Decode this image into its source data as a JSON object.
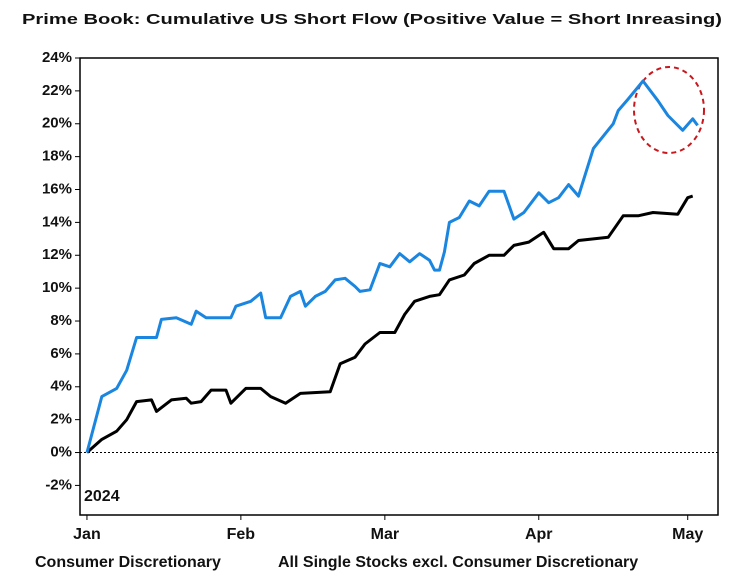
{
  "chart_data": {
    "type": "line",
    "title": "Prime Book: Cumulative US Short Flow (Positive Value = Short Inreasing)",
    "annotation": "2024",
    "xlim": [
      -1.4,
      127.1
    ],
    "xticks": [
      {
        "value": 0,
        "label": "Jan"
      },
      {
        "value": 31,
        "label": "Feb"
      },
      {
        "value": 60,
        "label": "Mar"
      },
      {
        "value": 91,
        "label": "Apr"
      },
      {
        "value": 121,
        "label": "May"
      }
    ],
    "ylim": [
      -3.8,
      24
    ],
    "yticks": [
      {
        "value": -2,
        "label": "-2%"
      },
      {
        "value": 0,
        "label": "0%"
      },
      {
        "value": 2,
        "label": "2%"
      },
      {
        "value": 4,
        "label": "4%"
      },
      {
        "value": 6,
        "label": "6%"
      },
      {
        "value": 8,
        "label": "8%"
      },
      {
        "value": 10,
        "label": "10%"
      },
      {
        "value": 12,
        "label": "12%"
      },
      {
        "value": 14,
        "label": "14%"
      },
      {
        "value": 16,
        "label": "16%"
      },
      {
        "value": 18,
        "label": "18%"
      },
      {
        "value": 20,
        "label": "20%"
      },
      {
        "value": 22,
        "label": "22%"
      },
      {
        "value": 24,
        "label": "24%"
      }
    ],
    "series": [
      {
        "name": "Consumer Discretionary",
        "color": "#1a86e0",
        "x": [
          0,
          3,
          6,
          8,
          10,
          14,
          15,
          18,
          21,
          22,
          24,
          29,
          30,
          33,
          35,
          36,
          39,
          41,
          43,
          44,
          46,
          48,
          50,
          52,
          54,
          55,
          57,
          59,
          61,
          63,
          65,
          67,
          69,
          70,
          71,
          72,
          73,
          75,
          77,
          79,
          81,
          84,
          86,
          88,
          91,
          93,
          95,
          97,
          99,
          102,
          106,
          107,
          109,
          112,
          115,
          117,
          120,
          122,
          123
        ],
        "values": [
          0,
          3.4,
          3.9,
          5,
          7,
          7,
          8.1,
          8.2,
          7.8,
          8.6,
          8.2,
          8.2,
          8.9,
          9.2,
          9.7,
          8.2,
          8.2,
          9.5,
          9.8,
          8.9,
          9.5,
          9.8,
          10.5,
          10.6,
          10.1,
          9.8,
          9.9,
          11.5,
          11.3,
          12.1,
          11.6,
          12.1,
          11.7,
          11.1,
          11.1,
          12.2,
          14,
          14.3,
          15.3,
          15,
          15.9,
          15.9,
          14.2,
          14.6,
          15.8,
          15.2,
          15.5,
          16.3,
          15.6,
          18.5,
          20,
          20.8,
          21.5,
          22.6,
          21.4,
          20.5,
          19.6,
          20.3,
          19.9
        ]
      },
      {
        "name": "All Single Stocks excl. Consumer Discretionary",
        "color": "#000000",
        "x": [
          0,
          3,
          6,
          8,
          10,
          13,
          14,
          17,
          20,
          21,
          23,
          25,
          28,
          29,
          32,
          35,
          37,
          40,
          43,
          49,
          51,
          54,
          56,
          59,
          62,
          64,
          66,
          69,
          71,
          73,
          76,
          78,
          81,
          84,
          86,
          89,
          92,
          94,
          97,
          99,
          105,
          108,
          111,
          114,
          119,
          121,
          122
        ],
        "values": [
          0,
          0.8,
          1.3,
          2,
          3.1,
          3.2,
          2.5,
          3.2,
          3.3,
          3,
          3.1,
          3.8,
          3.8,
          3,
          3.9,
          3.9,
          3.4,
          3,
          3.6,
          3.7,
          5.4,
          5.8,
          6.6,
          7.3,
          7.3,
          8.4,
          9.2,
          9.5,
          9.6,
          10.5,
          10.8,
          11.5,
          12,
          12,
          12.6,
          12.8,
          13.4,
          12.4,
          12.4,
          12.9,
          13.1,
          14.4,
          14.4,
          14.6,
          14.5,
          15.5,
          15.6
        ]
      }
    ]
  }
}
